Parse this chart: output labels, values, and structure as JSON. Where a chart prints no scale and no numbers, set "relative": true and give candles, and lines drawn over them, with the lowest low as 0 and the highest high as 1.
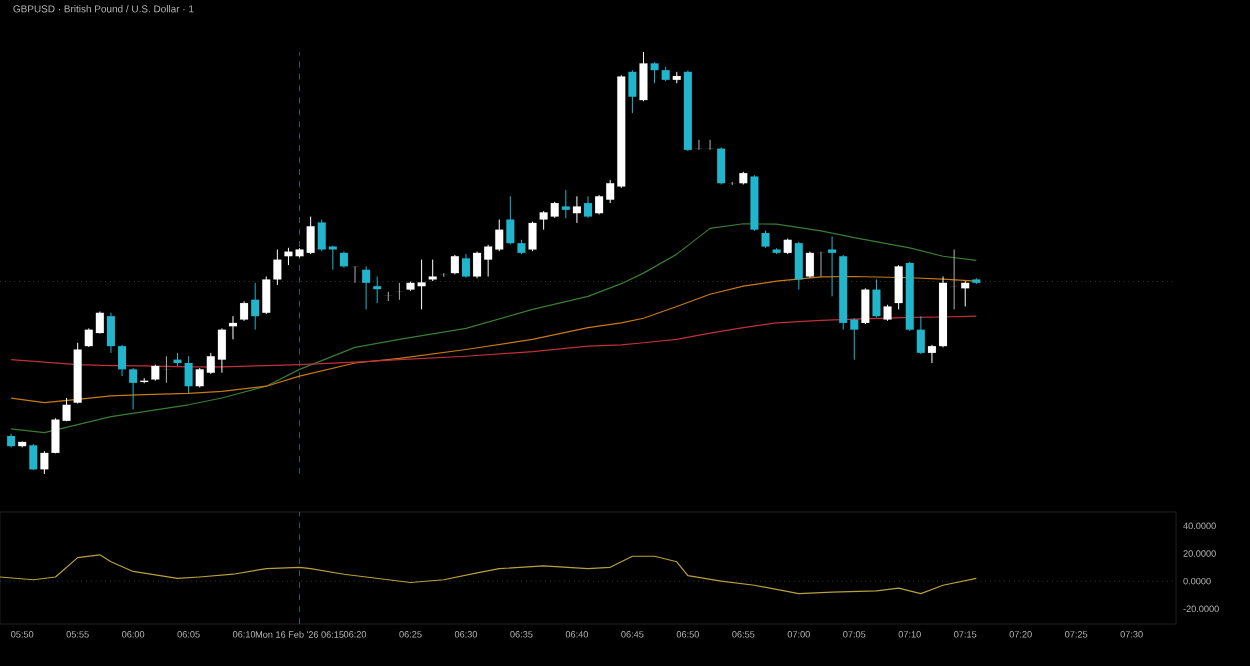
{
  "chart_data": [
    {
      "type": "candlestick",
      "title": "GBPUSD · British Pound / U.S. Dollar · 1",
      "relative": true,
      "xlim": [
        "2026-02-16T05:48",
        "2026-02-16T07:34"
      ],
      "x": [
        "2026-02-16T05:49",
        "2026-02-16T05:50",
        "2026-02-16T05:51",
        "2026-02-16T05:52",
        "2026-02-16T05:53",
        "2026-02-16T05:54",
        "2026-02-16T05:55",
        "2026-02-16T05:56",
        "2026-02-16T05:57",
        "2026-02-16T05:58",
        "2026-02-16T05:59",
        "2026-02-16T06:00",
        "2026-02-16T06:01",
        "2026-02-16T06:02",
        "2026-02-16T06:03",
        "2026-02-16T06:04",
        "2026-02-16T06:05",
        "2026-02-16T06:06",
        "2026-02-16T06:07",
        "2026-02-16T06:08",
        "2026-02-16T06:09",
        "2026-02-16T06:10",
        "2026-02-16T06:11",
        "2026-02-16T06:12",
        "2026-02-16T06:13",
        "2026-02-16T06:14",
        "2026-02-16T06:15",
        "2026-02-16T06:16",
        "2026-02-16T06:17",
        "2026-02-16T06:18",
        "2026-02-16T06:19",
        "2026-02-16T06:20",
        "2026-02-16T06:21",
        "2026-02-16T06:22",
        "2026-02-16T06:23",
        "2026-02-16T06:24",
        "2026-02-16T06:25",
        "2026-02-16T06:26",
        "2026-02-16T06:27",
        "2026-02-16T06:28",
        "2026-02-16T06:29",
        "2026-02-16T06:30",
        "2026-02-16T06:31",
        "2026-02-16T06:32",
        "2026-02-16T06:33",
        "2026-02-16T06:34",
        "2026-02-16T06:35",
        "2026-02-16T06:36",
        "2026-02-16T06:37",
        "2026-02-16T06:38",
        "2026-02-16T06:39",
        "2026-02-16T06:40",
        "2026-02-16T06:41",
        "2026-02-16T06:42",
        "2026-02-16T06:43",
        "2026-02-16T06:44",
        "2026-02-16T06:45",
        "2026-02-16T06:46",
        "2026-02-16T06:47",
        "2026-02-16T06:48",
        "2026-02-16T06:49",
        "2026-02-16T06:50",
        "2026-02-16T06:51",
        "2026-02-16T06:52",
        "2026-02-16T06:53",
        "2026-02-16T06:54",
        "2026-02-16T06:55",
        "2026-02-16T06:56",
        "2026-02-16T06:57",
        "2026-02-16T06:58",
        "2026-02-16T06:59",
        "2026-02-16T07:00",
        "2026-02-16T07:01",
        "2026-02-16T07:02",
        "2026-02-16T07:03",
        "2026-02-16T07:04",
        "2026-02-16T07:05",
        "2026-02-16T07:06",
        "2026-02-16T07:07",
        "2026-02-16T07:08",
        "2026-02-16T07:09",
        "2026-02-16T07:10",
        "2026-02-16T07:11",
        "2026-02-16T07:12",
        "2026-02-16T07:13",
        "2026-02-16T07:14",
        "2026-02-16T07:15",
        "2026-02-16T07:16"
      ],
      "ohlc": [
        [
          0.09,
          0.095,
          0.063,
          0.066
        ],
        [
          0.066,
          0.077,
          0.063,
          0.076
        ],
        [
          0.068,
          0.071,
          0.009,
          0.011
        ],
        [
          0.011,
          0.054,
          0,
          0.05
        ],
        [
          0.05,
          0.132,
          0.049,
          0.129
        ],
        [
          0.126,
          0.18,
          0.125,
          0.164
        ],
        [
          0.169,
          0.311,
          0.167,
          0.295
        ],
        [
          0.303,
          0.345,
          0.301,
          0.342
        ],
        [
          0.334,
          0.385,
          0.333,
          0.382
        ],
        [
          0.374,
          0.382,
          0.287,
          0.303
        ],
        [
          0.303,
          0.306,
          0.232,
          0.248
        ],
        [
          0.248,
          0.251,
          0.153,
          0.216
        ],
        [
          0.218,
          0.227,
          0.215,
          0.221
        ],
        [
          0.224,
          0.259,
          0.221,
          0.256
        ],
        [
          0.248,
          0.279,
          0.216,
          0.248
        ],
        [
          0.271,
          0.287,
          0.256,
          0.263
        ],
        [
          0.263,
          0.279,
          0.192,
          0.208
        ],
        [
          0.208,
          0.251,
          0.205,
          0.248
        ],
        [
          0.24,
          0.287,
          0.237,
          0.279
        ],
        [
          0.271,
          0.345,
          0.24,
          0.342
        ],
        [
          0.35,
          0.374,
          0.319,
          0.358
        ],
        [
          0.366,
          0.409,
          0.363,
          0.405
        ],
        [
          0.413,
          0.453,
          0.342,
          0.374
        ],
        [
          0.382,
          0.468,
          0.379,
          0.461
        ],
        [
          0.461,
          0.532,
          0.448,
          0.508
        ],
        [
          0.516,
          0.536,
          0.495,
          0.527
        ],
        [
          0.516,
          0.535,
          0.513,
          0.532
        ],
        [
          0.524,
          0.61,
          0.521,
          0.587
        ],
        [
          0.596,
          0.603,
          0.528,
          0.532
        ],
        [
          0.539,
          0.541,
          0.484,
          0.532
        ],
        [
          0.524,
          0.527,
          0.489,
          0.492
        ],
        [
          0.491,
          0.492,
          0.453,
          0.491
        ],
        [
          0.484,
          0.492,
          0.39,
          0.453
        ],
        [
          0.445,
          0.468,
          0.405,
          0.438
        ],
        [
          0.423,
          0.432,
          0.41,
          0.423
        ],
        [
          0.432,
          0.453,
          0.413,
          0.432
        ],
        [
          0.437,
          0.456,
          0.434,
          0.453
        ],
        [
          0.445,
          0.508,
          0.39,
          0.454
        ],
        [
          0.461,
          0.508,
          0.457,
          0.468
        ],
        [
          0.472,
          0.476,
          0.467,
          0.472
        ],
        [
          0.476,
          0.519,
          0.473,
          0.516
        ],
        [
          0.511,
          0.521,
          0.465,
          0.468
        ],
        [
          0.468,
          0.527,
          0.464,
          0.524
        ],
        [
          0.508,
          0.543,
          0.468,
          0.539
        ],
        [
          0.532,
          0.603,
          0.528,
          0.579
        ],
        [
          0.603,
          0.658,
          0.544,
          0.547
        ],
        [
          0.547,
          0.555,
          0.521,
          0.524
        ],
        [
          0.532,
          0.598,
          0.528,
          0.595
        ],
        [
          0.603,
          0.623,
          0.579,
          0.62
        ],
        [
          0.61,
          0.645,
          0.607,
          0.642
        ],
        [
          0.634,
          0.673,
          0.606,
          0.626
        ],
        [
          0.618,
          0.658,
          0.595,
          0.634
        ],
        [
          0.642,
          0.658,
          0.607,
          0.61
        ],
        [
          0.618,
          0.661,
          0.615,
          0.658
        ],
        [
          0.65,
          0.697,
          0.642,
          0.689
        ],
        [
          0.681,
          0.945,
          0.678,
          0.942
        ],
        [
          0.953,
          0.957,
          0.855,
          0.894
        ],
        [
          0.886,
          1,
          0.883,
          0.973
        ],
        [
          0.973,
          0.976,
          0.926,
          0.957
        ],
        [
          0.957,
          0.965,
          0.931,
          0.934
        ],
        [
          0.934,
          0.953,
          0.926,
          0.943
        ],
        [
          0.953,
          0.956,
          0.765,
          0.768
        ],
        [
          0.771,
          0.792,
          0.768,
          0.771
        ],
        [
          0.771,
          0.792,
          0.768,
          0.771
        ],
        [
          0.771,
          0.774,
          0.686,
          0.689
        ],
        [
          0.689,
          0.692,
          0.685,
          0.689
        ],
        [
          0.689,
          0.716,
          0.686,
          0.713
        ],
        [
          0.705,
          0.708,
          0.576,
          0.579
        ],
        [
          0.571,
          0.577,
          0.536,
          0.539
        ],
        [
          0.532,
          0.535,
          0.521,
          0.524
        ],
        [
          0.524,
          0.558,
          0.521,
          0.555
        ],
        [
          0.547,
          0.55,
          0.437,
          0.461
        ],
        [
          0.468,
          0.527,
          0.465,
          0.524
        ],
        [
          0.524,
          0.527,
          0.468,
          0.524
        ],
        [
          0.532,
          0.563,
          0.421,
          0.524
        ],
        [
          0.516,
          0.519,
          0.342,
          0.358
        ],
        [
          0.366,
          0.369,
          0.271,
          0.342
        ],
        [
          0.358,
          0.44,
          0.355,
          0.437
        ],
        [
          0.437,
          0.461,
          0.371,
          0.374
        ],
        [
          0.366,
          0.401,
          0.363,
          0.397
        ],
        [
          0.405,
          0.495,
          0.39,
          0.492
        ],
        [
          0.5,
          0.503,
          0.339,
          0.342
        ],
        [
          0.342,
          0.374,
          0.284,
          0.287
        ],
        [
          0.287,
          0.306,
          0.263,
          0.303
        ],
        [
          0.303,
          0.468,
          0.3,
          0.453
        ],
        [
          0.445,
          0.532,
          0.39,
          0.445
        ],
        [
          0.44,
          0.457,
          0.397,
          0.453
        ],
        [
          0.461,
          0.464,
          0.45,
          0.453
        ]
      ],
      "colors": [
        "#22b5cc",
        "#ffffff",
        "#22b5cc",
        "#ffffff",
        "#ffffff",
        "#ffffff",
        "#ffffff",
        "#ffffff",
        "#ffffff",
        "#22b5cc",
        "#22b5cc",
        "#22b5cc",
        "#ffffff",
        "#ffffff",
        "#b0b0b0",
        "#22b5cc",
        "#22b5cc",
        "#ffffff",
        "#ffffff",
        "#ffffff",
        "#ffffff",
        "#ffffff",
        "#22b5cc",
        "#ffffff",
        "#ffffff",
        "#ffffff",
        "#ffffff",
        "#ffffff",
        "#22b5cc",
        "#22b5cc",
        "#22b5cc",
        "#b0b0b0",
        "#22b5cc",
        "#22b5cc",
        "#b0b0b0",
        "#b0b0b0",
        "#ffffff",
        "#ffffff",
        "#ffffff",
        "#b0b0b0",
        "#ffffff",
        "#22b5cc",
        "#ffffff",
        "#ffffff",
        "#ffffff",
        "#22b5cc",
        "#22b5cc",
        "#ffffff",
        "#ffffff",
        "#ffffff",
        "#22b5cc",
        "#ffffff",
        "#22b5cc",
        "#ffffff",
        "#ffffff",
        "#ffffff",
        "#22b5cc",
        "#ffffff",
        "#22b5cc",
        "#22b5cc",
        "#ffffff",
        "#22b5cc",
        "#b0b0b0",
        "#b0b0b0",
        "#22b5cc",
        "#b0b0b0",
        "#ffffff",
        "#22b5cc",
        "#22b5cc",
        "#22b5cc",
        "#ffffff",
        "#22b5cc",
        "#ffffff",
        "#b0b0b0",
        "#22b5cc",
        "#22b5cc",
        "#22b5cc",
        "#ffffff",
        "#22b5cc",
        "#ffffff",
        "#ffffff",
        "#22b5cc",
        "#22b5cc",
        "#ffffff",
        "#ffffff",
        "#b0b0b0",
        "#ffffff",
        "#22b5cc"
      ],
      "series": [
        {
          "type": "line",
          "color": "#3a7d34",
          "x": [
            "2026-02-16T05:49",
            "2026-02-16T05:52",
            "2026-02-16T05:55",
            "2026-02-16T05:58",
            "2026-02-16T06:01",
            "2026-02-16T06:05",
            "2026-02-16T06:08",
            "2026-02-16T06:12",
            "2026-02-16T06:15",
            "2026-02-16T06:20",
            "2026-02-16T06:24",
            "2026-02-16T06:30",
            "2026-02-16T06:36",
            "2026-02-16T06:41",
            "2026-02-16T06:44",
            "2026-02-16T06:46",
            "2026-02-16T06:49",
            "2026-02-16T06:52",
            "2026-02-16T06:55",
            "2026-02-16T06:58",
            "2026-02-16T07:02",
            "2026-02-16T07:05",
            "2026-02-16T07:10",
            "2026-02-16T07:13",
            "2026-02-16T07:16"
          ],
          "values": [
            0.107,
            0.098,
            0.117,
            0.136,
            0.148,
            0.164,
            0.18,
            0.208,
            0.248,
            0.3,
            0.319,
            0.345,
            0.39,
            0.421,
            0.451,
            0.476,
            0.521,
            0.582,
            0.593,
            0.592,
            0.576,
            0.56,
            0.536,
            0.516,
            0.506
          ]
        },
        {
          "type": "line",
          "color": "#c77a12",
          "x": [
            "2026-02-16T05:49",
            "2026-02-16T05:52",
            "2026-02-16T05:55",
            "2026-02-16T05:58",
            "2026-02-16T06:01",
            "2026-02-16T06:05",
            "2026-02-16T06:08",
            "2026-02-16T06:12",
            "2026-02-16T06:15",
            "2026-02-16T06:20",
            "2026-02-16T06:24",
            "2026-02-16T06:30",
            "2026-02-16T06:36",
            "2026-02-16T06:41",
            "2026-02-16T06:44",
            "2026-02-16T06:46",
            "2026-02-16T06:49",
            "2026-02-16T06:52",
            "2026-02-16T06:55",
            "2026-02-16T06:58",
            "2026-02-16T07:02",
            "2026-02-16T07:05",
            "2026-02-16T07:10",
            "2026-02-16T07:13",
            "2026-02-16T07:16"
          ],
          "values": [
            0.18,
            0.169,
            0.177,
            0.185,
            0.188,
            0.191,
            0.196,
            0.208,
            0.232,
            0.263,
            0.274,
            0.295,
            0.319,
            0.347,
            0.358,
            0.369,
            0.397,
            0.426,
            0.445,
            0.457,
            0.467,
            0.468,
            0.465,
            0.462,
            0.457
          ]
        },
        {
          "type": "line",
          "color": "#c0303a",
          "x": [
            "2026-02-16T05:49",
            "2026-02-16T05:52",
            "2026-02-16T05:55",
            "2026-02-16T05:58",
            "2026-02-16T06:01",
            "2026-02-16T06:05",
            "2026-02-16T06:08",
            "2026-02-16T06:12",
            "2026-02-16T06:15",
            "2026-02-16T06:20",
            "2026-02-16T06:24",
            "2026-02-16T06:30",
            "2026-02-16T06:36",
            "2026-02-16T06:41",
            "2026-02-16T06:44",
            "2026-02-16T06:46",
            "2026-02-16T06:49",
            "2026-02-16T06:52",
            "2026-02-16T06:55",
            "2026-02-16T06:58",
            "2026-02-16T07:02",
            "2026-02-16T07:05",
            "2026-02-16T07:10",
            "2026-02-16T07:13",
            "2026-02-16T07:16"
          ],
          "values": [
            0.271,
            0.265,
            0.259,
            0.257,
            0.256,
            0.254,
            0.254,
            0.257,
            0.259,
            0.265,
            0.271,
            0.279,
            0.29,
            0.303,
            0.306,
            0.311,
            0.319,
            0.334,
            0.347,
            0.358,
            0.364,
            0.367,
            0.371,
            0.372,
            0.374
          ]
        }
      ],
      "ref_lines": [
        {
          "axis": "x",
          "value": "2026-02-16T06:15",
          "color": "#1f7f8c",
          "line_style": "dashed"
        },
        {
          "axis": "y",
          "value": 0.456,
          "color": "#5a5a3a",
          "line_style": "dotted"
        }
      ]
    },
    {
      "type": "line",
      "xlim": [
        "2026-02-16T05:48",
        "2026-02-16T07:34"
      ],
      "ylim": [
        -31,
        50
      ],
      "xticks": [
        {
          "value": "2026-02-16T05:50",
          "label": "05:50"
        },
        {
          "value": "2026-02-16T05:55",
          "label": "05:55"
        },
        {
          "value": "2026-02-16T06:00",
          "label": "06:00"
        },
        {
          "value": "2026-02-16T06:05",
          "label": "06:05"
        },
        {
          "value": "2026-02-16T06:10",
          "label": "06:10"
        },
        {
          "value": "2026-02-16T06:15",
          "label": "Mon 16 Feb '26  06:15"
        },
        {
          "value": "2026-02-16T06:20",
          "label": "06:20"
        },
        {
          "value": "2026-02-16T06:25",
          "label": "06:25"
        },
        {
          "value": "2026-02-16T06:30",
          "label": "06:30"
        },
        {
          "value": "2026-02-16T06:35",
          "label": "06:35"
        },
        {
          "value": "2026-02-16T06:40",
          "label": "06:40"
        },
        {
          "value": "2026-02-16T06:45",
          "label": "06:45"
        },
        {
          "value": "2026-02-16T06:50",
          "label": "06:50"
        },
        {
          "value": "2026-02-16T06:55",
          "label": "06:55"
        },
        {
          "value": "2026-02-16T07:00",
          "label": "07:00"
        },
        {
          "value": "2026-02-16T07:05",
          "label": "07:05"
        },
        {
          "value": "2026-02-16T07:10",
          "label": "07:10"
        },
        {
          "value": "2026-02-16T07:15",
          "label": "07:15"
        },
        {
          "value": "2026-02-16T07:20",
          "label": "07:20"
        },
        {
          "value": "2026-02-16T07:25",
          "label": "07:25"
        },
        {
          "value": "2026-02-16T07:30",
          "label": "07:30"
        }
      ],
      "yticks": [
        {
          "value": 40,
          "label": "40.0000"
        },
        {
          "value": 20,
          "label": "20.0000"
        },
        {
          "value": 0,
          "label": "0.0000"
        },
        {
          "value": -20,
          "label": "-20.0000"
        }
      ],
      "series": [
        {
          "color": "#b8a040",
          "x": [
            "2026-02-16T05:48",
            "2026-02-16T05:51",
            "2026-02-16T05:53",
            "2026-02-16T05:55",
            "2026-02-16T05:57",
            "2026-02-16T05:58",
            "2026-02-16T06:00",
            "2026-02-16T06:04",
            "2026-02-16T06:06",
            "2026-02-16T06:09",
            "2026-02-16T06:12",
            "2026-02-16T06:15",
            "2026-02-16T06:16",
            "2026-02-16T06:19",
            "2026-02-16T06:22",
            "2026-02-16T06:25",
            "2026-02-16T06:28",
            "2026-02-16T06:31",
            "2026-02-16T06:33",
            "2026-02-16T06:37",
            "2026-02-16T06:41",
            "2026-02-16T06:43",
            "2026-02-16T06:45",
            "2026-02-16T06:47",
            "2026-02-16T06:49",
            "2026-02-16T06:50",
            "2026-02-16T06:53",
            "2026-02-16T06:56",
            "2026-02-16T07:00",
            "2026-02-16T07:03",
            "2026-02-16T07:07",
            "2026-02-16T07:09",
            "2026-02-16T07:11",
            "2026-02-16T07:13",
            "2026-02-16T07:16"
          ],
          "values": [
            3,
            1,
            3,
            17,
            19,
            14,
            7,
            2,
            3,
            5,
            9,
            10,
            9,
            5,
            2,
            -1,
            1,
            6,
            9,
            11,
            9,
            10,
            18,
            18,
            14,
            4,
            0,
            -3,
            -9,
            -8,
            -7,
            -5,
            -9,
            -3,
            2
          ]
        }
      ],
      "ref_lines": [
        {
          "axis": "x",
          "value": "2026-02-16T06:15",
          "color": "#1f7f8c",
          "line_style": "dashed"
        },
        {
          "axis": "y",
          "value": 0,
          "color": "#5a5a5a",
          "line_style": "dotted"
        }
      ]
    }
  ]
}
